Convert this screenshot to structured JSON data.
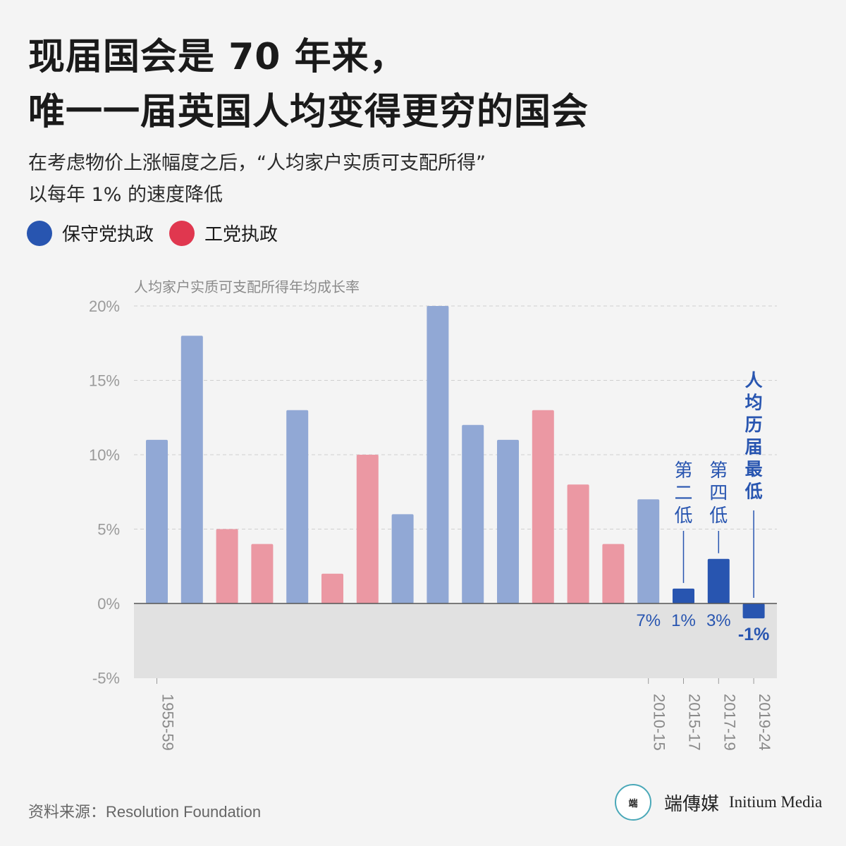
{
  "title": {
    "line1": "现届国会是 70 年来，",
    "line2": "唯一一届英国人均变得更穷的国会"
  },
  "subtitle": {
    "line1": "在考虑物价上涨幅度之后，“人均家户实质可支配所得”",
    "line2": "以每年 1% 的速度降低"
  },
  "legend": [
    {
      "label": "保守党执政",
      "color": "#2855b0"
    },
    {
      "label": "工党执政",
      "color": "#e0374f"
    }
  ],
  "source": "资料来源：Resolution Foundation",
  "logo": {
    "mark": "端",
    "name_cn": "端傳媒",
    "name_en": "Initium Media"
  },
  "colors": {
    "conservative_light": "#91a8d5",
    "labour_light": "#eb98a3",
    "highlight": "#2855b0",
    "negative_region": "#e1e1e1"
  },
  "chart_data": {
    "type": "bar",
    "ylabel": "人均家户实质可支配所得年均成长率",
    "ylim": [
      -5,
      20
    ],
    "yticks": [
      20,
      15,
      10,
      5,
      0,
      -5
    ],
    "ytick_labels": [
      "20%",
      "15%",
      "10%",
      "5%",
      "0%",
      "-5%"
    ],
    "grid": "horizontal dashed",
    "bars": [
      {
        "category": "1955-59",
        "value": 11,
        "party": "conservative",
        "highlight": false
      },
      {
        "category": "",
        "value": 18,
        "party": "conservative",
        "highlight": false
      },
      {
        "category": "",
        "value": 5,
        "party": "labour",
        "highlight": false
      },
      {
        "category": "",
        "value": 4,
        "party": "labour",
        "highlight": false
      },
      {
        "category": "",
        "value": 13,
        "party": "conservative",
        "highlight": false
      },
      {
        "category": "",
        "value": 2,
        "party": "labour",
        "highlight": false
      },
      {
        "category": "",
        "value": 10,
        "party": "labour",
        "highlight": false
      },
      {
        "category": "",
        "value": 6,
        "party": "conservative",
        "highlight": false
      },
      {
        "category": "",
        "value": 20,
        "party": "conservative",
        "highlight": false
      },
      {
        "category": "",
        "value": 12,
        "party": "conservative",
        "highlight": false
      },
      {
        "category": "",
        "value": 11,
        "party": "conservative",
        "highlight": false
      },
      {
        "category": "",
        "value": 13,
        "party": "labour",
        "highlight": false
      },
      {
        "category": "",
        "value": 8,
        "party": "labour",
        "highlight": false
      },
      {
        "category": "",
        "value": 4,
        "party": "labour",
        "highlight": false
      },
      {
        "category": "2010-15",
        "value": 7,
        "party": "conservative",
        "highlight": false,
        "label": "7%"
      },
      {
        "category": "2015-17",
        "value": 1,
        "party": "conservative",
        "highlight": true,
        "label": "1%",
        "annotation": "第二低"
      },
      {
        "category": "2017-19",
        "value": 3,
        "party": "conservative",
        "highlight": true,
        "label": "3%",
        "annotation": "第四低"
      },
      {
        "category": "2019-24",
        "value": -1,
        "party": "conservative",
        "highlight": true,
        "label": "-1%",
        "annotation": "人均历届最低",
        "emphasis": true
      }
    ]
  }
}
